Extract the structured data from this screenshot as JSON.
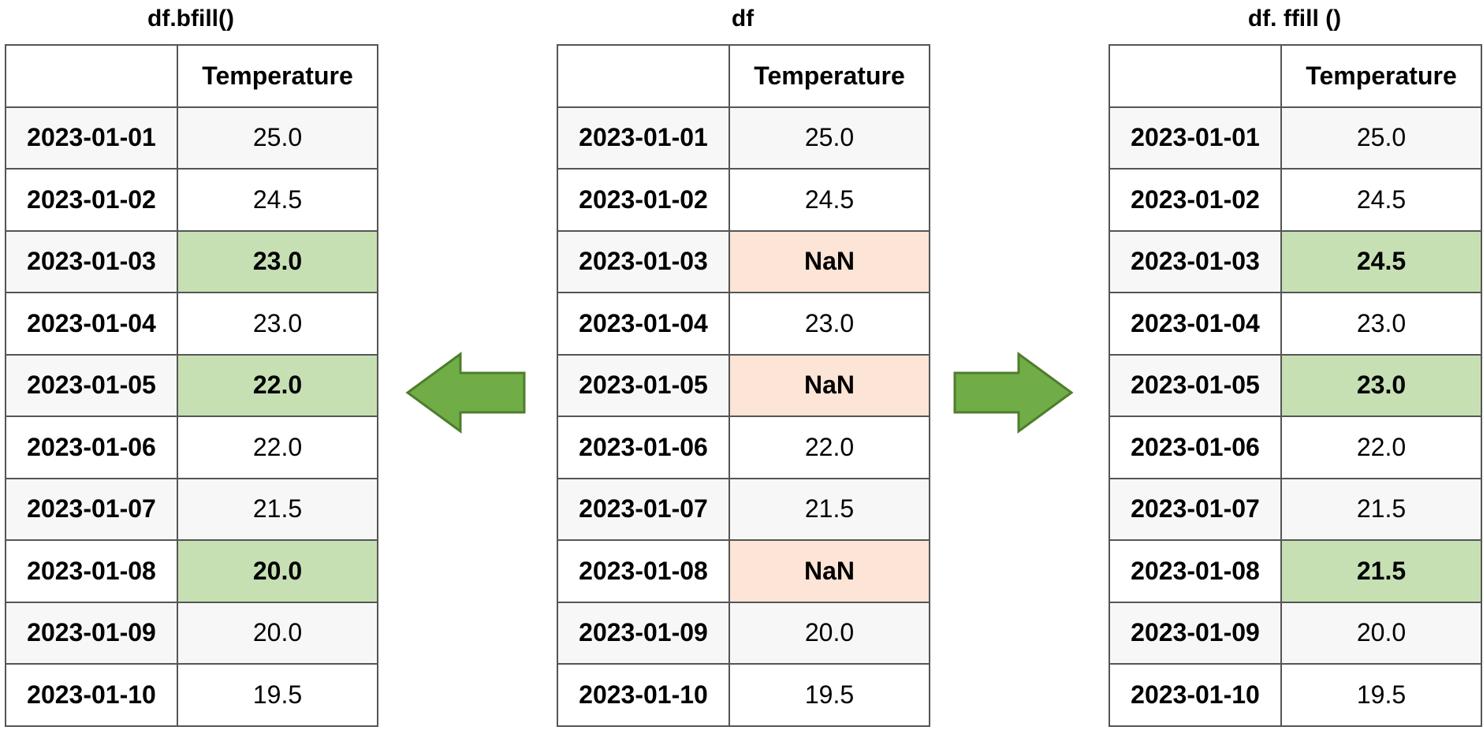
{
  "colors": {
    "filled": "#c6e0b4",
    "nan": "#fce4d6",
    "arrow_fill": "#70ad47",
    "arrow_stroke": "#4e7d2c"
  },
  "icons": {
    "left": "arrow-left-icon",
    "right": "arrow-right-icon"
  },
  "panels": {
    "bfill": {
      "title": "df.bfill()",
      "header": [
        "",
        "Temperature"
      ],
      "rows": [
        {
          "index": "2023-01-01",
          "value": "25.0",
          "state": "normal"
        },
        {
          "index": "2023-01-02",
          "value": "24.5",
          "state": "normal"
        },
        {
          "index": "2023-01-03",
          "value": "23.0",
          "state": "filled"
        },
        {
          "index": "2023-01-04",
          "value": "23.0",
          "state": "normal"
        },
        {
          "index": "2023-01-05",
          "value": "22.0",
          "state": "filled"
        },
        {
          "index": "2023-01-06",
          "value": "22.0",
          "state": "normal"
        },
        {
          "index": "2023-01-07",
          "value": "21.5",
          "state": "normal"
        },
        {
          "index": "2023-01-08",
          "value": "20.0",
          "state": "filled"
        },
        {
          "index": "2023-01-09",
          "value": "20.0",
          "state": "normal"
        },
        {
          "index": "2023-01-10",
          "value": "19.5",
          "state": "normal"
        }
      ]
    },
    "df": {
      "title": "df",
      "header": [
        "",
        "Temperature"
      ],
      "rows": [
        {
          "index": "2023-01-01",
          "value": "25.0",
          "state": "normal"
        },
        {
          "index": "2023-01-02",
          "value": "24.5",
          "state": "normal"
        },
        {
          "index": "2023-01-03",
          "value": "NaN",
          "state": "nan"
        },
        {
          "index": "2023-01-04",
          "value": "23.0",
          "state": "normal"
        },
        {
          "index": "2023-01-05",
          "value": "NaN",
          "state": "nan"
        },
        {
          "index": "2023-01-06",
          "value": "22.0",
          "state": "normal"
        },
        {
          "index": "2023-01-07",
          "value": "21.5",
          "state": "normal"
        },
        {
          "index": "2023-01-08",
          "value": "NaN",
          "state": "nan"
        },
        {
          "index": "2023-01-09",
          "value": "20.0",
          "state": "normal"
        },
        {
          "index": "2023-01-10",
          "value": "19.5",
          "state": "normal"
        }
      ]
    },
    "ffill": {
      "title": "df. ffill ()",
      "header": [
        "",
        "Temperature"
      ],
      "rows": [
        {
          "index": "2023-01-01",
          "value": "25.0",
          "state": "normal"
        },
        {
          "index": "2023-01-02",
          "value": "24.5",
          "state": "normal"
        },
        {
          "index": "2023-01-03",
          "value": "24.5",
          "state": "filled"
        },
        {
          "index": "2023-01-04",
          "value": "23.0",
          "state": "normal"
        },
        {
          "index": "2023-01-05",
          "value": "23.0",
          "state": "filled"
        },
        {
          "index": "2023-01-06",
          "value": "22.0",
          "state": "normal"
        },
        {
          "index": "2023-01-07",
          "value": "21.5",
          "state": "normal"
        },
        {
          "index": "2023-01-08",
          "value": "21.5",
          "state": "filled"
        },
        {
          "index": "2023-01-09",
          "value": "20.0",
          "state": "normal"
        },
        {
          "index": "2023-01-10",
          "value": "19.5",
          "state": "normal"
        }
      ]
    }
  }
}
